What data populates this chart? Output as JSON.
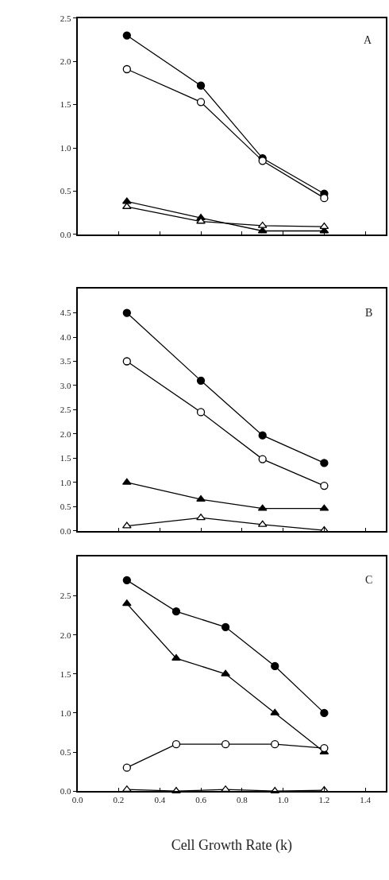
{
  "chart_data": [
    {
      "type": "line",
      "annotations": [
        "A"
      ],
      "x": [
        0.24,
        0.6,
        0.9,
        1.2
      ],
      "xlim": [
        0,
        1.5
      ],
      "xticks": [
        {
          "value": 0,
          "label": null
        },
        {
          "value": 0.2,
          "label": null
        },
        {
          "value": 0.4,
          "label": null
        },
        {
          "value": 0.6,
          "label": null
        },
        {
          "value": 0.8,
          "label": null
        },
        {
          "value": 1.0,
          "label": null
        },
        {
          "value": 1.2,
          "label": null
        },
        {
          "value": 1.4,
          "label": null
        }
      ],
      "ylim": [
        0,
        2.5
      ],
      "yticks": [
        {
          "value": 0,
          "label": "0.0"
        },
        {
          "value": 0.5,
          "label": "0.5"
        },
        {
          "value": 1,
          "label": "1.0"
        },
        {
          "value": 1.5,
          "label": "1.5"
        },
        {
          "value": 2,
          "label": "2.0"
        },
        {
          "value": 2.5,
          "label": "2.5"
        }
      ],
      "tick_labels": "y",
      "grid": false,
      "legend": false,
      "line_style": "solid",
      "series": [
        {
          "marker": "circle",
          "color": "#000000",
          "values": [
            2.3,
            1.72,
            0.88,
            0.47
          ]
        },
        {
          "marker": "circle",
          "color": "#ffffff",
          "values": [
            1.91,
            1.53,
            0.85,
            0.42
          ]
        },
        {
          "marker": "triangle",
          "color": "#000000",
          "values": [
            0.38,
            0.19,
            0.04,
            0.04
          ]
        },
        {
          "marker": "triangle",
          "color": "#ffffff",
          "values": [
            0.32,
            0.15,
            0.1,
            0.09
          ]
        }
      ]
    },
    {
      "type": "line",
      "annotations": [
        "B"
      ],
      "x": [
        0.24,
        0.6,
        0.9,
        1.2
      ],
      "xlim": [
        0,
        1.5
      ],
      "xticks": [
        {
          "value": 0,
          "label": null
        },
        {
          "value": 0.2,
          "label": null
        },
        {
          "value": 0.4,
          "label": null
        },
        {
          "value": 0.6,
          "label": null
        },
        {
          "value": 0.8,
          "label": null
        },
        {
          "value": 1.0,
          "label": null
        },
        {
          "value": 1.2,
          "label": null
        },
        {
          "value": 1.4,
          "label": null
        }
      ],
      "ylim": [
        0,
        5
      ],
      "yticks": [
        {
          "value": 0,
          "label": "0.0"
        },
        {
          "value": 0.5,
          "label": "0.5"
        },
        {
          "value": 1,
          "label": "1.0"
        },
        {
          "value": 1.5,
          "label": "1.5"
        },
        {
          "value": 2,
          "label": "2.0"
        },
        {
          "value": 2.5,
          "label": "2.5"
        },
        {
          "value": 3,
          "label": "3.0"
        },
        {
          "value": 3.5,
          "label": "3.5"
        },
        {
          "value": 4,
          "label": "4.0"
        },
        {
          "value": 4.5,
          "label": "4.5"
        }
      ],
      "tick_labels": "y",
      "grid": false,
      "legend": false,
      "line_style": "solid",
      "series": [
        {
          "marker": "circle",
          "color": "#000000",
          "values": [
            4.5,
            3.1,
            1.97,
            1.4
          ]
        },
        {
          "marker": "circle",
          "color": "#ffffff",
          "values": [
            3.5,
            2.45,
            1.48,
            0.93
          ]
        },
        {
          "marker": "triangle",
          "color": "#000000",
          "values": [
            1.0,
            0.65,
            0.46,
            0.46
          ]
        },
        {
          "marker": "triangle",
          "color": "#ffffff",
          "values": [
            0.1,
            0.27,
            0.13,
            0.01
          ]
        }
      ]
    },
    {
      "type": "line",
      "annotations": [
        "C"
      ],
      "xlabel": "Cell Growth Rate (k)",
      "x": [
        0.24,
        0.48,
        0.72,
        0.96,
        1.2
      ],
      "xlim": [
        0,
        1.5
      ],
      "xticks": [
        {
          "value": 0,
          "label": "0.0"
        },
        {
          "value": 0.2,
          "label": "0.2"
        },
        {
          "value": 0.4,
          "label": "0.4"
        },
        {
          "value": 0.6,
          "label": "0.6"
        },
        {
          "value": 0.8,
          "label": "0.8"
        },
        {
          "value": 1.0,
          "label": "1.0"
        },
        {
          "value": 1.2,
          "label": "1.2"
        },
        {
          "value": 1.4,
          "label": "1.4"
        }
      ],
      "ylim": [
        0,
        3
      ],
      "yticks": [
        {
          "value": 0,
          "label": "0.0"
        },
        {
          "value": 0.5,
          "label": "0.5"
        },
        {
          "value": 1,
          "label": "1.0"
        },
        {
          "value": 1.5,
          "label": "1.5"
        },
        {
          "value": 2,
          "label": "2.0"
        },
        {
          "value": 2.5,
          "label": "2.5"
        }
      ],
      "grid": false,
      "legend": false,
      "line_style": "solid",
      "series": [
        {
          "marker": "circle",
          "color": "#000000",
          "values": [
            2.7,
            2.3,
            2.1,
            1.6,
            1.0
          ]
        },
        {
          "marker": "triangle",
          "color": "#000000",
          "values": [
            2.4,
            1.7,
            1.5,
            1.0,
            0.5
          ]
        },
        {
          "marker": "circle",
          "color": "#ffffff",
          "values": [
            0.3,
            0.6,
            0.6,
            0.6,
            0.55
          ]
        },
        {
          "marker": "triangle",
          "color": "#ffffff",
          "values": [
            0.02,
            0.0,
            0.02,
            0.0,
            0.01
          ]
        }
      ]
    }
  ]
}
